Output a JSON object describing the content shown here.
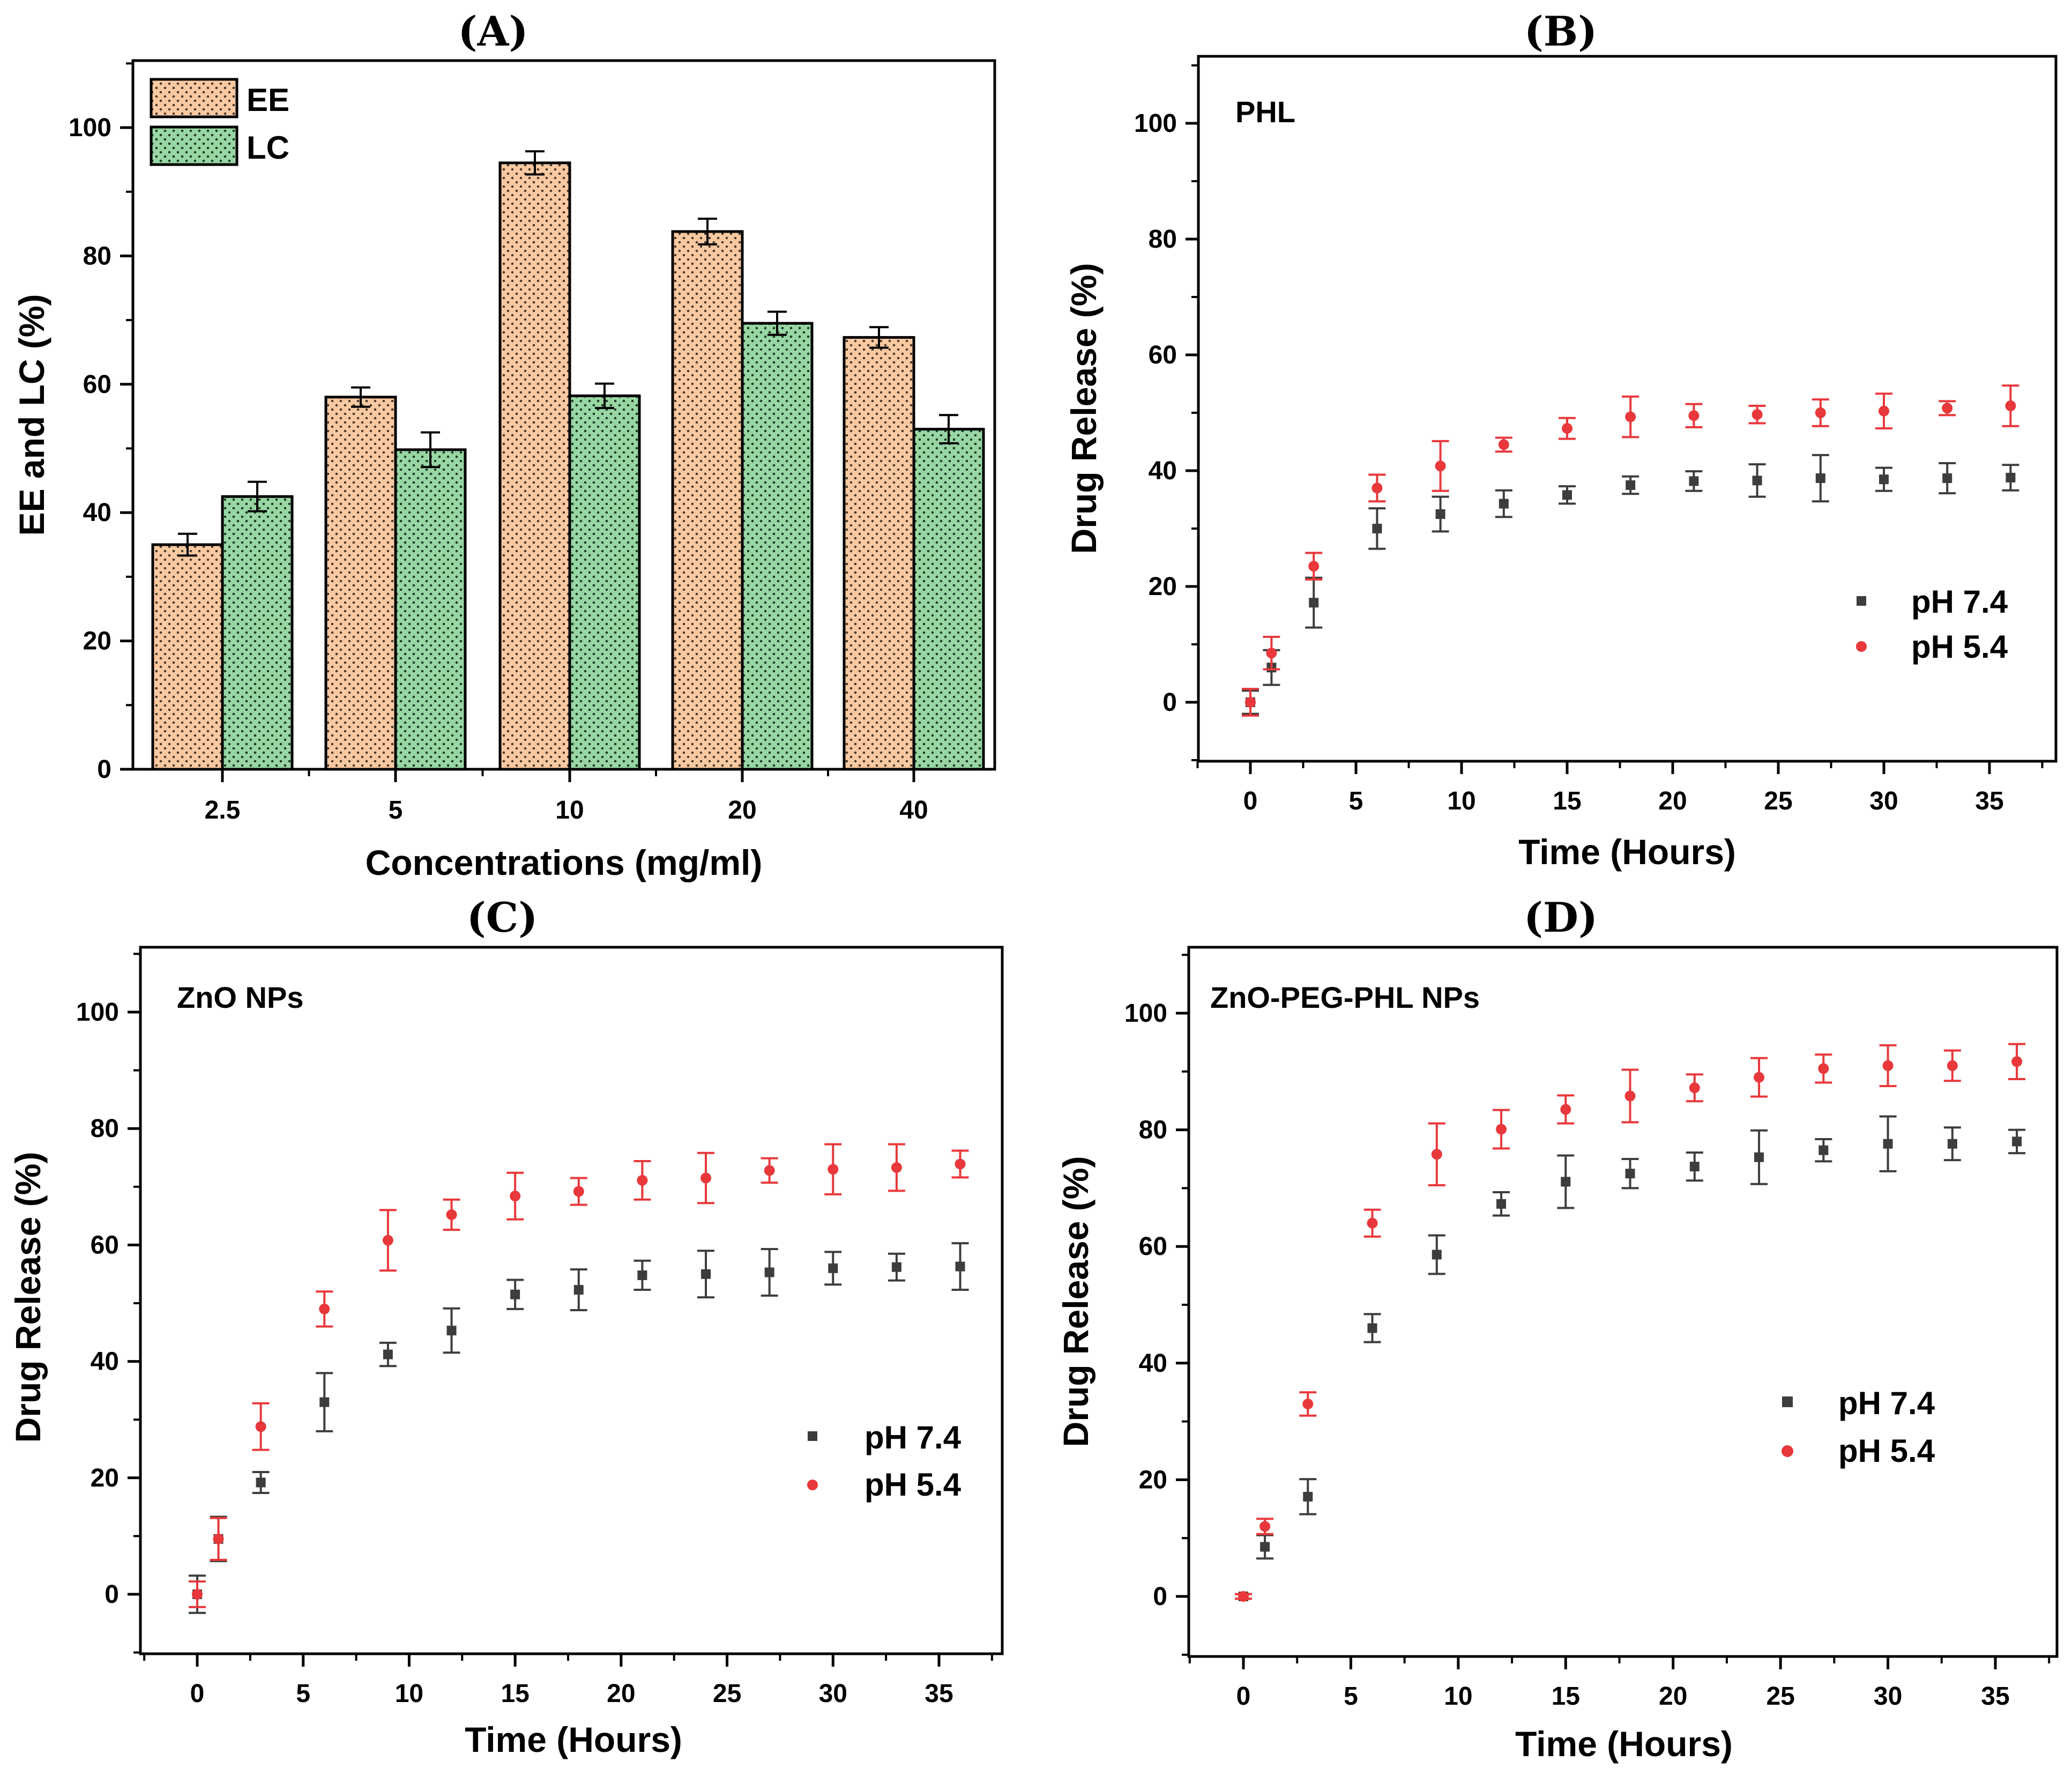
{
  "colors": {
    "ee_fill": "#f9c9a2",
    "lc_fill": "#98d6a4",
    "ph74": "#3d3d3d",
    "ph54": "#e8383b",
    "axis": "#000000"
  },
  "chart_data": [
    {
      "panel": "(A)",
      "type": "bar",
      "xlabel": "Concentrations (mg/ml)",
      "ylabel": "EE and LC (%)",
      "categories": [
        "2.5",
        "5",
        "10",
        "20",
        "40"
      ],
      "ylim": [
        0,
        110
      ],
      "yticks": [
        0,
        20,
        40,
        60,
        80,
        100
      ],
      "legend_position": "top-left",
      "series": [
        {
          "name": "EE",
          "values": [
            35,
            58,
            94.5,
            83.8,
            67.3
          ],
          "errors": [
            1.7,
            1.5,
            1.8,
            2.0,
            1.6
          ]
        },
        {
          "name": "LC",
          "values": [
            42.5,
            49.8,
            58.2,
            69.5,
            53
          ],
          "errors": [
            2.3,
            2.7,
            1.9,
            1.8,
            2.2
          ]
        }
      ]
    },
    {
      "panel": "(B)",
      "type": "scatter",
      "annotation": "PHL",
      "xlabel": "Time (Hours)",
      "ylabel": "Drug Release (%)",
      "xlim": [
        -2.5,
        37.5
      ],
      "ylim": [
        -10,
        110
      ],
      "xticks": [
        0,
        5,
        10,
        15,
        20,
        25,
        30,
        35
      ],
      "yticks": [
        0,
        20,
        40,
        60,
        80,
        100
      ],
      "legend_position": "lower-right",
      "x": [
        0,
        1,
        3,
        6,
        9,
        12,
        15,
        18,
        21,
        24,
        27,
        30,
        33,
        36
      ],
      "series": [
        {
          "name": "pH 7.4",
          "values": [
            0,
            6,
            17.2,
            30,
            32.5,
            34.3,
            35.8,
            37.5,
            38.2,
            38.3,
            38.7,
            38.5,
            38.7,
            38.8
          ],
          "errors": [
            2,
            3,
            4.3,
            3.5,
            3,
            2.3,
            1.5,
            1.5,
            1.7,
            2.8,
            4,
            2,
            2.6,
            2.2
          ]
        },
        {
          "name": "pH 5.4",
          "values": [
            0,
            8.5,
            23.5,
            37,
            40.8,
            44.5,
            47.3,
            49.3,
            49.5,
            49.7,
            50,
            50.3,
            50.8,
            51.2
          ],
          "errors": [
            2.3,
            2.8,
            2.3,
            2.3,
            4.3,
            1.2,
            1.8,
            3.5,
            2,
            1.5,
            2.3,
            3,
            1.2,
            3.5
          ]
        }
      ]
    },
    {
      "panel": "(C)",
      "type": "scatter",
      "annotation": "ZnO NPs",
      "xlabel": "Time (Hours)",
      "ylabel": "Drug Release (%)",
      "xlim": [
        -2.5,
        37.5
      ],
      "ylim": [
        -10,
        110
      ],
      "xticks": [
        0,
        5,
        10,
        15,
        20,
        25,
        30,
        35
      ],
      "yticks": [
        0,
        20,
        40,
        60,
        80,
        100
      ],
      "legend_position": "lower-right",
      "x": [
        0,
        1,
        3,
        6,
        9,
        12,
        15,
        18,
        21,
        24,
        27,
        30,
        33,
        36
      ],
      "series": [
        {
          "name": "pH 7.4",
          "values": [
            0,
            9.5,
            19.2,
            33,
            41.2,
            45.3,
            51.5,
            52.3,
            54.8,
            55,
            55.3,
            56,
            56.2,
            56.3
          ],
          "errors": [
            3.2,
            3.8,
            1.8,
            5,
            2,
            3.8,
            2.5,
            3.5,
            2.5,
            4,
            4,
            2.8,
            2.3,
            4
          ]
        },
        {
          "name": "pH 5.4",
          "values": [
            0,
            9.5,
            28.8,
            49,
            60.8,
            65.2,
            68.4,
            69.2,
            71.1,
            71.5,
            72.8,
            73,
            73.3,
            73.9
          ],
          "errors": [
            2.2,
            3.6,
            4,
            3,
            5.2,
            2.6,
            4,
            2.3,
            3.3,
            4.3,
            2.1,
            4.3,
            4,
            2.3
          ]
        }
      ]
    },
    {
      "panel": "(D)",
      "type": "scatter",
      "annotation": "ZnO-PEG-PHL NPs",
      "xlabel": "Time (Hours)",
      "ylabel": "Drug Release (%)",
      "xlim": [
        -2.5,
        37.5
      ],
      "ylim": [
        -10,
        110
      ],
      "xticks": [
        0,
        5,
        10,
        15,
        20,
        25,
        30,
        35
      ],
      "yticks": [
        0,
        20,
        40,
        60,
        80,
        100
      ],
      "legend_position": "lower-right",
      "x": [
        0,
        1,
        3,
        6,
        9,
        12,
        15,
        18,
        21,
        24,
        27,
        30,
        33,
        36
      ],
      "series": [
        {
          "name": "pH 7.4",
          "values": [
            0,
            8.5,
            17.1,
            46,
            58.6,
            67.3,
            71.1,
            72.5,
            73.7,
            75.3,
            76.5,
            77.6,
            77.6,
            78
          ],
          "errors": [
            0.4,
            2,
            3,
            2.4,
            3.3,
            2,
            4.5,
            2.5,
            2.4,
            4.6,
            1.9,
            4.7,
            2.8,
            2
          ]
        },
        {
          "name": "pH 5.4",
          "values": [
            0,
            12,
            33,
            64,
            75.8,
            80.1,
            83.5,
            85.8,
            87.2,
            89,
            90.5,
            91,
            91,
            91.7
          ],
          "errors": [
            0.4,
            1.3,
            2,
            2.3,
            5.3,
            3.3,
            2.4,
            4.5,
            2.3,
            3.3,
            2.4,
            3.5,
            2.6,
            3
          ]
        }
      ]
    }
  ]
}
